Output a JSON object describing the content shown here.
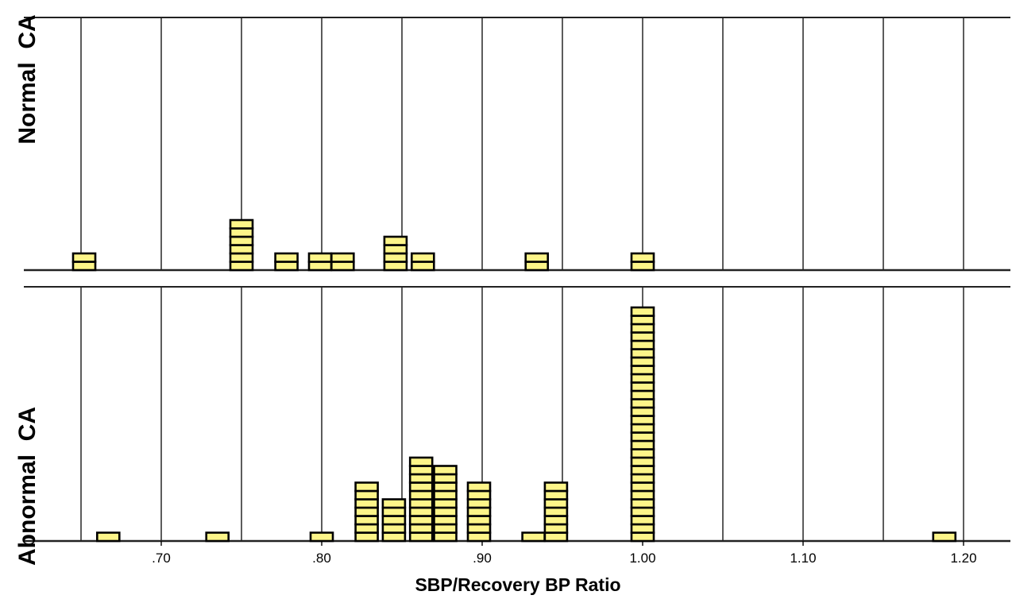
{
  "chart_data": {
    "type": "dot-plot",
    "xlabel": "SBP/Recovery BP Ratio",
    "xlim": [
      0.64,
      1.23
    ],
    "grid": true,
    "gridlines": [
      0.65,
      0.7,
      0.75,
      0.8,
      0.85,
      0.9,
      0.95,
      1.0,
      1.05,
      1.1,
      1.15,
      1.2
    ],
    "ticks": [
      {
        "value": 0.7,
        "label": ".70"
      },
      {
        "value": 0.8,
        "label": ".80"
      },
      {
        "value": 0.9,
        "label": ".90"
      },
      {
        "value": 1.0,
        "label": "1.00"
      },
      {
        "value": 1.1,
        "label": "1.10"
      },
      {
        "value": 1.2,
        "label": "1.20"
      }
    ],
    "marker_color": "#fdf589",
    "panels": [
      {
        "title": "Normal  CA",
        "points": [
          {
            "x": 0.652,
            "count": 2
          },
          {
            "x": 0.75,
            "count": 6
          },
          {
            "x": 0.778,
            "count": 2
          },
          {
            "x": 0.799,
            "count": 2
          },
          {
            "x": 0.813,
            "count": 2
          },
          {
            "x": 0.846,
            "count": 4
          },
          {
            "x": 0.863,
            "count": 2
          },
          {
            "x": 0.934,
            "count": 2
          },
          {
            "x": 1.0,
            "count": 2
          }
        ]
      },
      {
        "title": "Abnormal  CA",
        "points": [
          {
            "x": 0.667,
            "count": 1
          },
          {
            "x": 0.735,
            "count": 1
          },
          {
            "x": 0.8,
            "count": 1
          },
          {
            "x": 0.828,
            "count": 7
          },
          {
            "x": 0.845,
            "count": 5
          },
          {
            "x": 0.862,
            "count": 10
          },
          {
            "x": 0.877,
            "count": 9
          },
          {
            "x": 0.898,
            "count": 7
          },
          {
            "x": 0.932,
            "count": 1
          },
          {
            "x": 0.946,
            "count": 7
          },
          {
            "x": 1.0,
            "count": 28
          },
          {
            "x": 1.188,
            "count": 1
          }
        ]
      }
    ]
  }
}
